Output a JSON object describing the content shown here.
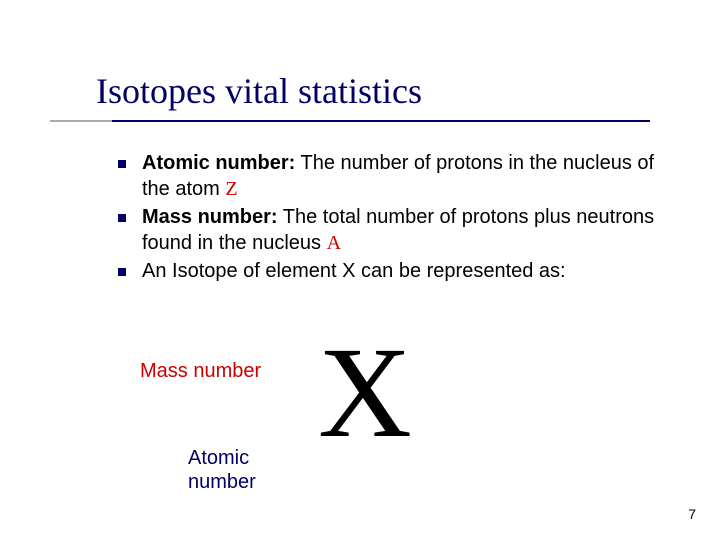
{
  "title": "Isotopes vital statistics",
  "colors": {
    "title": "#000066",
    "underline_gray": "#aaaaaa",
    "underline_navy": "#000066",
    "bullet_marker": "#000066",
    "body_text": "#000000",
    "red": "#cc0000",
    "navy": "#000066",
    "background": "#ffffff"
  },
  "bullets": [
    {
      "bold": "Atomic number:",
      "text": " The number of protons in the nucleus of the atom    ",
      "symbol": "Z",
      "symbol_color": "#cc0000"
    },
    {
      "bold": "Mass number:",
      "text": " The total number of protons plus neutrons found in the nucleus  ",
      "symbol": "A",
      "symbol_color": "#cc0000"
    },
    {
      "bold": "",
      "text": "An Isotope of element X can be represented as:",
      "symbol": "",
      "symbol_color": ""
    }
  ],
  "diagram": {
    "mass_label": "Mass number",
    "atomic_label_line1": "Atomic",
    "atomic_label_line2": "number",
    "element": "X",
    "element_fontsize": 130,
    "mass_label_color": "#cc0000",
    "atomic_label_color": "#000066"
  },
  "page_number": "7",
  "typography": {
    "title_fontsize": 36,
    "body_fontsize": 20,
    "label_fontsize": 20,
    "page_fontsize": 14
  }
}
